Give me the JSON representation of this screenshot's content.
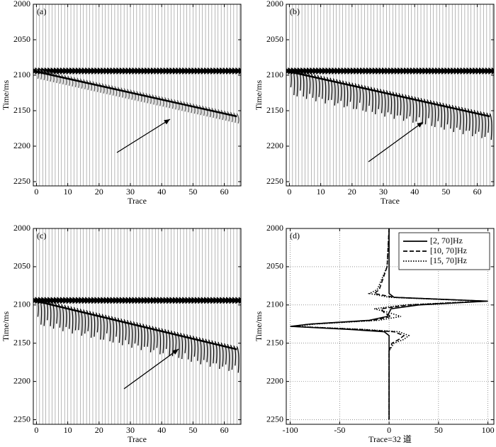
{
  "chart_data": [
    {
      "type": "wiggle",
      "label": "(a)",
      "xlabel": "Trace",
      "ylabel": "Time/ms",
      "xlim": [
        -1,
        65.3
      ],
      "ylim": [
        2000,
        2256
      ],
      "xticks": [
        0,
        10,
        20,
        30,
        40,
        50,
        60
      ],
      "yticks": [
        2000,
        2050,
        2100,
        2150,
        2200,
        2250
      ],
      "event": {
        "x": [
          0,
          64
        ],
        "y": [
          2095,
          2158
        ]
      }
    },
    {
      "type": "wiggle",
      "label": "(b)",
      "xlabel": "Trace",
      "ylabel": "Time/ms",
      "xlim": [
        -1,
        65.3
      ],
      "ylim": [
        2000,
        2256
      ],
      "xticks": [
        0,
        10,
        20,
        30,
        40,
        50,
        60
      ],
      "yticks": [
        2000,
        2050,
        2100,
        2150,
        2200,
        2250
      ],
      "event": {
        "x": [
          0,
          64
        ],
        "y": [
          2095,
          2158
        ]
      }
    },
    {
      "type": "wiggle",
      "label": "(c)",
      "xlabel": "Trace",
      "ylabel": "Time/ms",
      "xlim": [
        -1,
        65.3
      ],
      "ylim": [
        2000,
        2256
      ],
      "xticks": [
        0,
        10,
        20,
        30,
        40,
        50,
        60
      ],
      "yticks": [
        2000,
        2050,
        2100,
        2150,
        2200,
        2250
      ],
      "event": {
        "x": [
          0,
          64
        ],
        "y": [
          2095,
          2158
        ]
      }
    },
    {
      "type": "line",
      "label": "(d)",
      "xlabel": "Trace=32 道",
      "ylabel": "Time/ms",
      "xlim": [
        -104,
        106
      ],
      "ylim": [
        2000,
        2256
      ],
      "xticks": [
        -100,
        -50,
        0,
        50,
        100
      ],
      "yticks": [
        2000,
        2050,
        2100,
        2150,
        2200,
        2250
      ],
      "grid": true,
      "legend": "upper right",
      "y": [
        2000,
        2050,
        2080,
        2085,
        2090,
        2095,
        2100,
        2105,
        2110,
        2115,
        2120,
        2125,
        2128,
        2132,
        2135,
        2140,
        2145,
        2150,
        2160,
        2200,
        2250
      ],
      "series": [
        {
          "name": "[2, 70]Hz",
          "color": "#000000",
          "dash": "solid",
          "values": [
            0,
            0,
            0,
            0,
            5,
            100,
            30,
            2,
            0,
            -2,
            -20,
            -80,
            -100,
            -40,
            -5,
            0,
            0,
            0,
            0,
            0,
            0
          ]
        },
        {
          "name": "[10, 70]Hz",
          "color": "#000000",
          "dash": "dashed",
          "values": [
            0,
            -2,
            -10,
            -15,
            5,
            98,
            20,
            -8,
            -5,
            2,
            -15,
            -80,
            -98,
            -30,
            5,
            15,
            10,
            3,
            0,
            0,
            0
          ]
        },
        {
          "name": "[15, 70]Hz",
          "color": "#000000",
          "dash": "dotted",
          "values": [
            0,
            -2,
            -12,
            -20,
            0,
            95,
            15,
            -15,
            0,
            12,
            -10,
            -75,
            -95,
            -25,
            10,
            20,
            15,
            5,
            0,
            0,
            0
          ]
        }
      ]
    }
  ]
}
